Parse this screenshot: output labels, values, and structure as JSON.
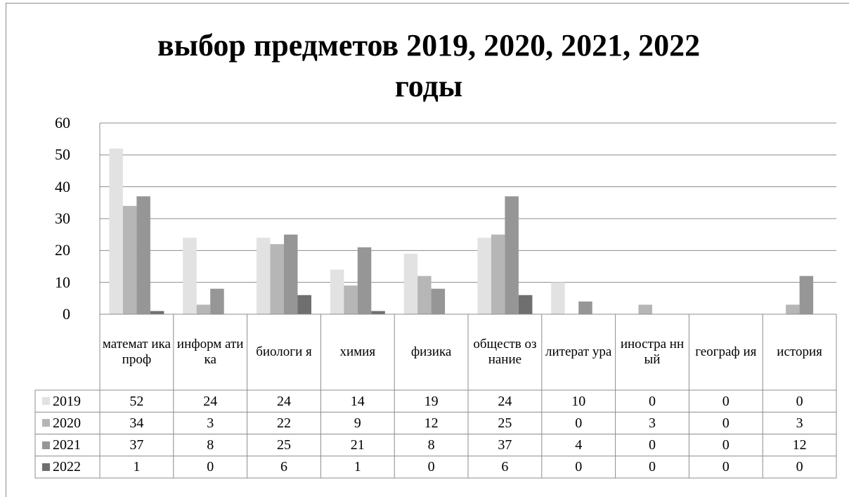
{
  "chart_data": {
    "type": "bar",
    "title": "выбор предметов 2019, 2020, 2021, 2022 годы",
    "categories": [
      "математ ика проф",
      "информ атика",
      "биологи я",
      "химия",
      "физика",
      "обществ ознание",
      "литерат ура",
      "иностра нный",
      "географ ия",
      "история"
    ],
    "series": [
      {
        "name": "2019",
        "color": "#e2e2e2",
        "values": [
          52,
          24,
          24,
          14,
          19,
          24,
          10,
          0,
          0,
          0
        ]
      },
      {
        "name": "2020",
        "color": "#b6b6b6",
        "values": [
          34,
          3,
          22,
          9,
          12,
          25,
          0,
          3,
          0,
          3
        ]
      },
      {
        "name": "2021",
        "color": "#969696",
        "values": [
          37,
          8,
          25,
          21,
          8,
          37,
          4,
          0,
          0,
          12
        ]
      },
      {
        "name": "2022",
        "color": "#6f6f6f",
        "values": [
          1,
          0,
          6,
          1,
          0,
          6,
          0,
          0,
          0,
          0
        ]
      }
    ],
    "ylim": [
      0,
      60
    ],
    "yticks": [
      0,
      10,
      20,
      30,
      40,
      50,
      60
    ],
    "grid": true,
    "legend": "data-table"
  }
}
